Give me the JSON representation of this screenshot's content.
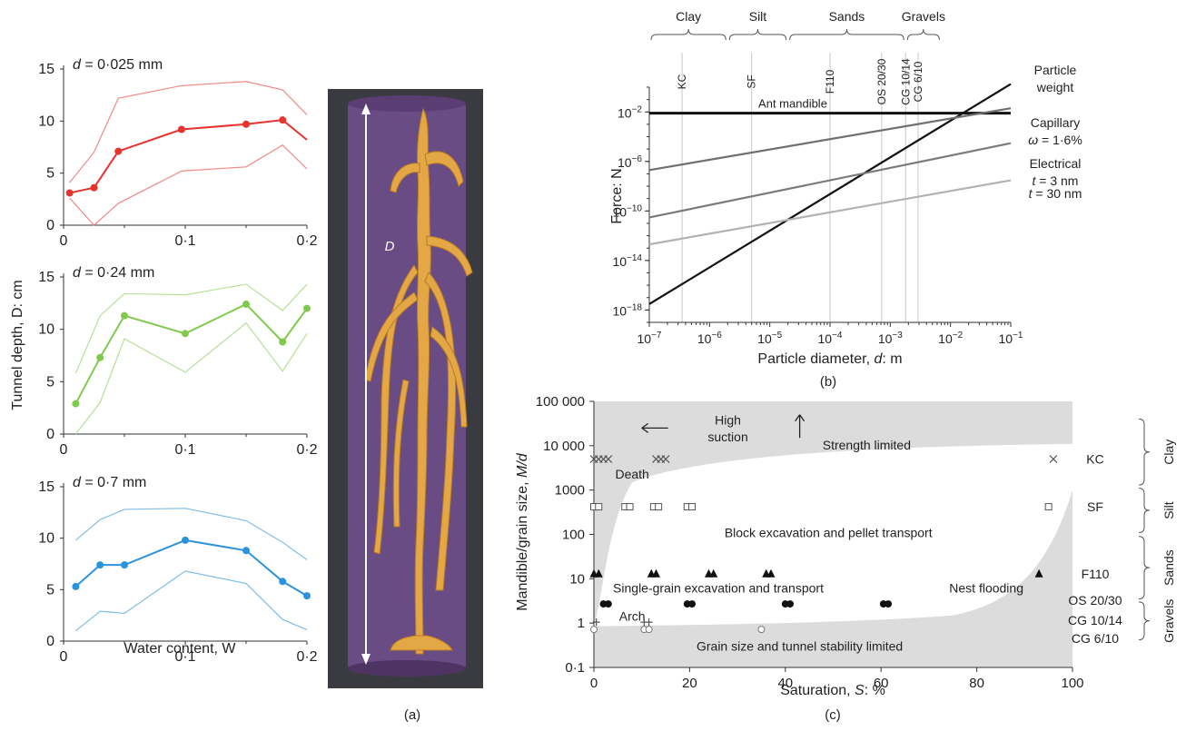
{
  "panel_labels": {
    "a": "(a)",
    "b": "(b)",
    "c": "(c)"
  },
  "panel_a": {
    "ylabel": "Tunnel depth, D: cm",
    "xlabel": "Water content, W",
    "yticks": [
      "0",
      "5",
      "10",
      "15"
    ],
    "xticks": [
      "0",
      "0·1",
      "0·2"
    ],
    "photo_label": "D"
  },
  "chart_data": [
    {
      "type": "line",
      "panel": "a-top",
      "title_prefix": "d",
      "title_suffix": " = 0·025 mm",
      "color": "#e8322d",
      "band_color": "#f08a86",
      "xlim": [
        0,
        0.2
      ],
      "ylim": [
        0,
        15
      ],
      "x": [
        0.005,
        0.025,
        0.045,
        0.097,
        0.15,
        0.18,
        0.2
      ],
      "mean": [
        3.1,
        3.6,
        7.1,
        9.2,
        9.7,
        10.1,
        8.2
      ],
      "upper": [
        4.1,
        7.0,
        12.2,
        13.4,
        13.8,
        13.0,
        10.6
      ],
      "lower": [
        2.6,
        -0.2,
        2.1,
        5.2,
        5.6,
        7.7,
        5.4
      ],
      "marker_count": 6
    },
    {
      "type": "line",
      "panel": "a-middle",
      "title_prefix": "d",
      "title_suffix": " = 0·24 mm",
      "color": "#7fca4c",
      "band_color": "#b6e196",
      "xlim": [
        0,
        0.2
      ],
      "ylim": [
        0,
        15
      ],
      "x": [
        0.01,
        0.03,
        0.05,
        0.1,
        0.15,
        0.18,
        0.2
      ],
      "mean": [
        2.9,
        7.3,
        11.3,
        9.6,
        12.4,
        8.8,
        12.0
      ],
      "upper": [
        5.8,
        11.3,
        13.4,
        13.3,
        14.3,
        11.8,
        14.3
      ],
      "lower": [
        0.0,
        3.0,
        9.1,
        5.9,
        10.6,
        6.0,
        9.6
      ]
    },
    {
      "type": "line",
      "panel": "a-bottom",
      "title_prefix": "d",
      "title_suffix": " = 0·7 mm",
      "color": "#2a93dc",
      "band_color": "#7fbde9",
      "xlim": [
        0,
        0.2
      ],
      "ylim": [
        0,
        15
      ],
      "x": [
        0.01,
        0.03,
        0.05,
        0.1,
        0.15,
        0.18,
        0.2
      ],
      "mean": [
        5.3,
        7.4,
        7.4,
        9.8,
        8.8,
        5.8,
        4.4
      ],
      "upper": [
        9.8,
        11.8,
        12.8,
        12.9,
        11.7,
        9.6,
        7.9
      ],
      "lower": [
        1.0,
        2.9,
        2.7,
        6.8,
        5.6,
        2.1,
        1.1
      ]
    },
    {
      "type": "line",
      "panel": "b",
      "xlabel_prefix": "Particle diameter, ",
      "xlabel_var": "d",
      "xlabel_suffix": ": m",
      "ylabel": "Force: N",
      "xscale": "log",
      "yscale": "log",
      "xlim": [
        1e-07,
        0.1
      ],
      "ylim": [
        1e-19,
        1.0
      ],
      "xticks": [
        {
          "base": "10",
          "exp": "−7",
          "value": 1e-07
        },
        {
          "base": "10",
          "exp": "−6",
          "value": 1e-06
        },
        {
          "base": "10",
          "exp": "−5",
          "value": 1e-05
        },
        {
          "base": "10",
          "exp": "−4",
          "value": 0.0001
        },
        {
          "base": "10",
          "exp": "−3",
          "value": 0.001
        },
        {
          "base": "10",
          "exp": "−2",
          "value": 0.01
        },
        {
          "base": "10",
          "exp": "−1",
          "value": 0.1
        }
      ],
      "yticks": [
        {
          "base": "10",
          "exp": "−18",
          "value": 1e-18
        },
        {
          "base": "10",
          "exp": "−14",
          "value": 1e-14
        },
        {
          "base": "10",
          "exp": "−10",
          "value": 1e-10
        },
        {
          "base": "10",
          "exp": "−6",
          "value": 1e-06
        },
        {
          "base": "10",
          "exp": "−2",
          "value": 0.01
        }
      ],
      "series": [
        {
          "name": "Particle weight",
          "label_lines": [
            "Particle",
            "weight"
          ],
          "color": "#111111",
          "x": [
            1e-07,
            0.1
          ],
          "y": [
            3e-18,
            1.8
          ]
        },
        {
          "name": "Capillary",
          "label_lines": [
            "Capillary",
            "ω = 1·6%"
          ],
          "color": "#6f6f6f",
          "x": [
            1e-07,
            0.1
          ],
          "y": [
            2e-07,
            0.02
          ]
        },
        {
          "name": "Electrical t = 3 nm",
          "label_lines": [
            "Electrical",
            "t = 3 nm"
          ],
          "color": "#7a7a7a",
          "x": [
            1e-07,
            0.1
          ],
          "y": [
            3e-11,
            3e-05
          ]
        },
        {
          "name": "t = 30 nm",
          "label_lines": [
            "t = 30 nm"
          ],
          "color": "#b2b2b2",
          "x": [
            1e-07,
            0.1
          ],
          "y": [
            2e-13,
            3e-08
          ]
        }
      ],
      "hline": {
        "label": "Ant mandible",
        "y": 0.008
      },
      "materials": [
        {
          "label": "KC",
          "x": 3.5e-07
        },
        {
          "label": "SF",
          "x": 5e-06
        },
        {
          "label": "F110",
          "x": 0.0001
        },
        {
          "label": "OS 20/30",
          "x": 0.00072
        },
        {
          "label": "CG 10/14",
          "x": 0.0018
        },
        {
          "label": "CG 6/10",
          "x": 0.0029
        }
      ],
      "classes": [
        {
          "label": "Clay",
          "from": 1e-07,
          "to": 2e-06
        },
        {
          "label": "Silt",
          "from": 2e-06,
          "to": 2e-05
        },
        {
          "label": "Sands",
          "from": 2e-05,
          "to": 0.0018
        },
        {
          "label": "Gravels",
          "from": 0.0018,
          "to": 0.007
        }
      ]
    },
    {
      "type": "scatter",
      "panel": "c",
      "xlabel_prefix": "Saturation, ",
      "xlabel_var": "S",
      "xlabel_suffix": ": %",
      "ylabel_prefix": "Mandible/grain size, ",
      "ylabel_var": "M/d",
      "xlim": [
        0,
        100
      ],
      "ylim": [
        0.1,
        100000
      ],
      "yscale": "log",
      "xticks": [
        0,
        20,
        40,
        60,
        80,
        100
      ],
      "yticks": [
        {
          "label": "0·1",
          "value": 0.1
        },
        {
          "label": "1",
          "value": 1
        },
        {
          "label": "10",
          "value": 10
        },
        {
          "label": "100",
          "value": 100
        },
        {
          "label": "1000",
          "value": 1000
        },
        {
          "label": "10 000",
          "value": 10000
        },
        {
          "label": "100 000",
          "value": 100000
        }
      ],
      "series": [
        {
          "name": "KC",
          "marker": "x",
          "y": 5000,
          "x": [
            0,
            1,
            2,
            3,
            13,
            14,
            15,
            96
          ]
        },
        {
          "name": "SF",
          "marker": "square",
          "y": 420,
          "x": [
            0,
            1,
            6.5,
            7.5,
            12.5,
            13.5,
            19.5,
            20.5,
            95
          ]
        },
        {
          "name": "F110",
          "marker": "triangle",
          "y": 13,
          "x": [
            0,
            1,
            12,
            13,
            24,
            25,
            36,
            37,
            93
          ]
        },
        {
          "name": "OS 20/30",
          "marker": "dot",
          "y": 2.7,
          "x": [
            2,
            3,
            19.5,
            20.5,
            40,
            41,
            60.5,
            61.5
          ]
        },
        {
          "name": "CG 10/14",
          "marker": "plus",
          "y": 1.05,
          "x": [
            0.5,
            10.5,
            11.5
          ]
        },
        {
          "name": "CG 6/10",
          "marker": "circle",
          "y": 0.72,
          "x": [
            0,
            10.5,
            11.5,
            35
          ]
        }
      ],
      "row_labels": [
        "KC",
        "SF",
        "F110",
        "OS 20/30",
        "CG 10/14",
        "CG 6/10"
      ],
      "row_label_y": [
        5000,
        420,
        13,
        3.3,
        1.15,
        0.45
      ],
      "groups": [
        {
          "label": "Clay",
          "from": 40000,
          "to": 1300
        },
        {
          "label": "Silt",
          "from": 1100,
          "to": 110
        },
        {
          "label": "Sands",
          "from": 90,
          "to": 3.5
        },
        {
          "label": "Gravels",
          "from": 3.0,
          "to": 0.42
        }
      ],
      "regions": [
        {
          "label": "High",
          "x": 28,
          "y": 38000
        },
        {
          "label": "suction",
          "x": 28,
          "y": 16000
        },
        {
          "label": "Strength limited",
          "x": 57,
          "y": 10500
        },
        {
          "label": "Death",
          "x": 8,
          "y": 2300
        },
        {
          "label": "Block excavation and pellet transport",
          "x": 49,
          "y": 110
        },
        {
          "label": "Single-grain excavation and transport",
          "x": 26,
          "y": 6.2
        },
        {
          "label": "Nest flooding",
          "x": 82,
          "y": 6.2
        },
        {
          "label": "Arch",
          "x": 8,
          "y": 1.45
        },
        {
          "label": "Grain size and tunnel stability limited",
          "x": 43,
          "y": 0.3
        }
      ]
    }
  ]
}
